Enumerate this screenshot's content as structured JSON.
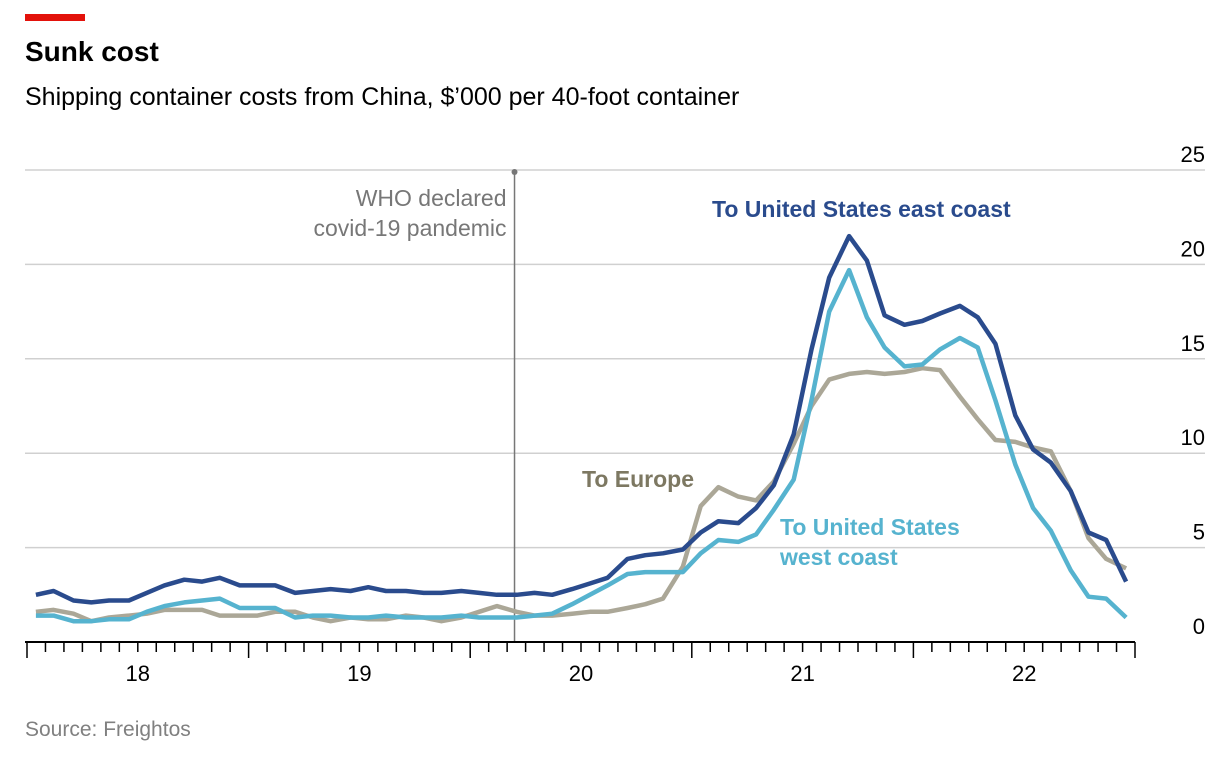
{
  "chart_data": {
    "type": "line",
    "title": "Sunk cost",
    "subtitle": "Shipping container costs from China, $’000 per 40-foot container",
    "source": "Source: Freightos",
    "annotations": [
      {
        "text": [
          "WHO declared",
          "covid-19 pandemic"
        ],
        "x": 2020.2
      }
    ],
    "x": [
      2018.04,
      2018.12,
      2018.21,
      2018.29,
      2018.37,
      2018.46,
      2018.54,
      2018.62,
      2018.71,
      2018.79,
      2018.87,
      2018.96,
      2019.04,
      2019.12,
      2019.21,
      2019.29,
      2019.37,
      2019.46,
      2019.54,
      2019.62,
      2019.71,
      2019.79,
      2019.87,
      2019.96,
      2020.04,
      2020.12,
      2020.21,
      2020.29,
      2020.37,
      2020.46,
      2020.54,
      2020.62,
      2020.71,
      2020.79,
      2020.87,
      2020.96,
      2021.04,
      2021.12,
      2021.21,
      2021.29,
      2021.37,
      2021.46,
      2021.54,
      2021.62,
      2021.71,
      2021.79,
      2021.87,
      2021.96,
      2022.04,
      2022.12,
      2022.21,
      2022.29,
      2022.37,
      2022.46,
      2022.54,
      2022.62,
      2022.71,
      2022.79,
      2022.87,
      2022.96
    ],
    "series": [
      {
        "name": "To United States east coast",
        "color": "#2a4b8d",
        "values": [
          2.5,
          2.7,
          2.2,
          2.1,
          2.2,
          2.2,
          2.6,
          3.0,
          3.3,
          3.2,
          3.4,
          3.0,
          3.0,
          3.0,
          2.6,
          2.7,
          2.8,
          2.7,
          2.9,
          2.7,
          2.7,
          2.6,
          2.6,
          2.7,
          2.6,
          2.5,
          2.5,
          2.6,
          2.5,
          2.8,
          3.1,
          3.4,
          4.4,
          4.6,
          4.7,
          4.9,
          5.8,
          6.4,
          6.3,
          7.1,
          8.3,
          11,
          15.5,
          19.3,
          21.5,
          20.2,
          17.3,
          16.8,
          17.0,
          17.4,
          17.8,
          17.2,
          15.8,
          12,
          10.2,
          9.5,
          8,
          5.8,
          5.4,
          3.2
        ]
      },
      {
        "name": "To United States west coast",
        "color": "#56b3cf",
        "values": [
          1.4,
          1.4,
          1.1,
          1.1,
          1.2,
          1.2,
          1.6,
          1.9,
          2.1,
          2.2,
          2.3,
          1.8,
          1.8,
          1.8,
          1.3,
          1.4,
          1.4,
          1.3,
          1.3,
          1.4,
          1.3,
          1.3,
          1.3,
          1.4,
          1.3,
          1.3,
          1.3,
          1.4,
          1.5,
          2.0,
          2.5,
          3.0,
          3.6,
          3.7,
          3.7,
          3.7,
          4.7,
          5.4,
          5.3,
          5.7,
          7.0,
          8.6,
          12.8,
          17.5,
          19.7,
          17.2,
          15.6,
          14.6,
          14.7,
          15.5,
          16.1,
          15.6,
          12.8,
          9.4,
          7.1,
          5.9,
          3.8,
          2.4,
          2.3,
          1.3
        ]
      },
      {
        "name": "To Europe",
        "color": "#aba797",
        "label_color": "#7d7862",
        "values": [
          1.6,
          1.7,
          1.5,
          1.1,
          1.3,
          1.4,
          1.5,
          1.7,
          1.7,
          1.7,
          1.4,
          1.4,
          1.4,
          1.6,
          1.6,
          1.3,
          1.1,
          1.3,
          1.2,
          1.2,
          1.4,
          1.3,
          1.1,
          1.3,
          1.6,
          1.9,
          1.6,
          1.4,
          1.4,
          1.5,
          1.6,
          1.6,
          1.8,
          2.0,
          2.3,
          4.0,
          7.2,
          8.2,
          7.7,
          7.5,
          8.5,
          10.5,
          12.5,
          13.9,
          14.2,
          14.3,
          14.2,
          14.3,
          14.5,
          14.4,
          13.0,
          11.8,
          10.7,
          10.6,
          10.3,
          10.1,
          8.0,
          5.5,
          4.4,
          3.9
        ]
      }
    ],
    "xlim": [
      2018,
      2023
    ],
    "xticks": [
      {
        "value": 2018.5,
        "label": "18"
      },
      {
        "value": 2019.5,
        "label": "19"
      },
      {
        "value": 2020.5,
        "label": "20"
      },
      {
        "value": 2021.5,
        "label": "21"
      },
      {
        "value": 2022.5,
        "label": "22"
      }
    ],
    "ylim": [
      0,
      25
    ],
    "yticks": [
      0,
      5,
      10,
      15,
      20,
      25
    ],
    "grid": true
  }
}
